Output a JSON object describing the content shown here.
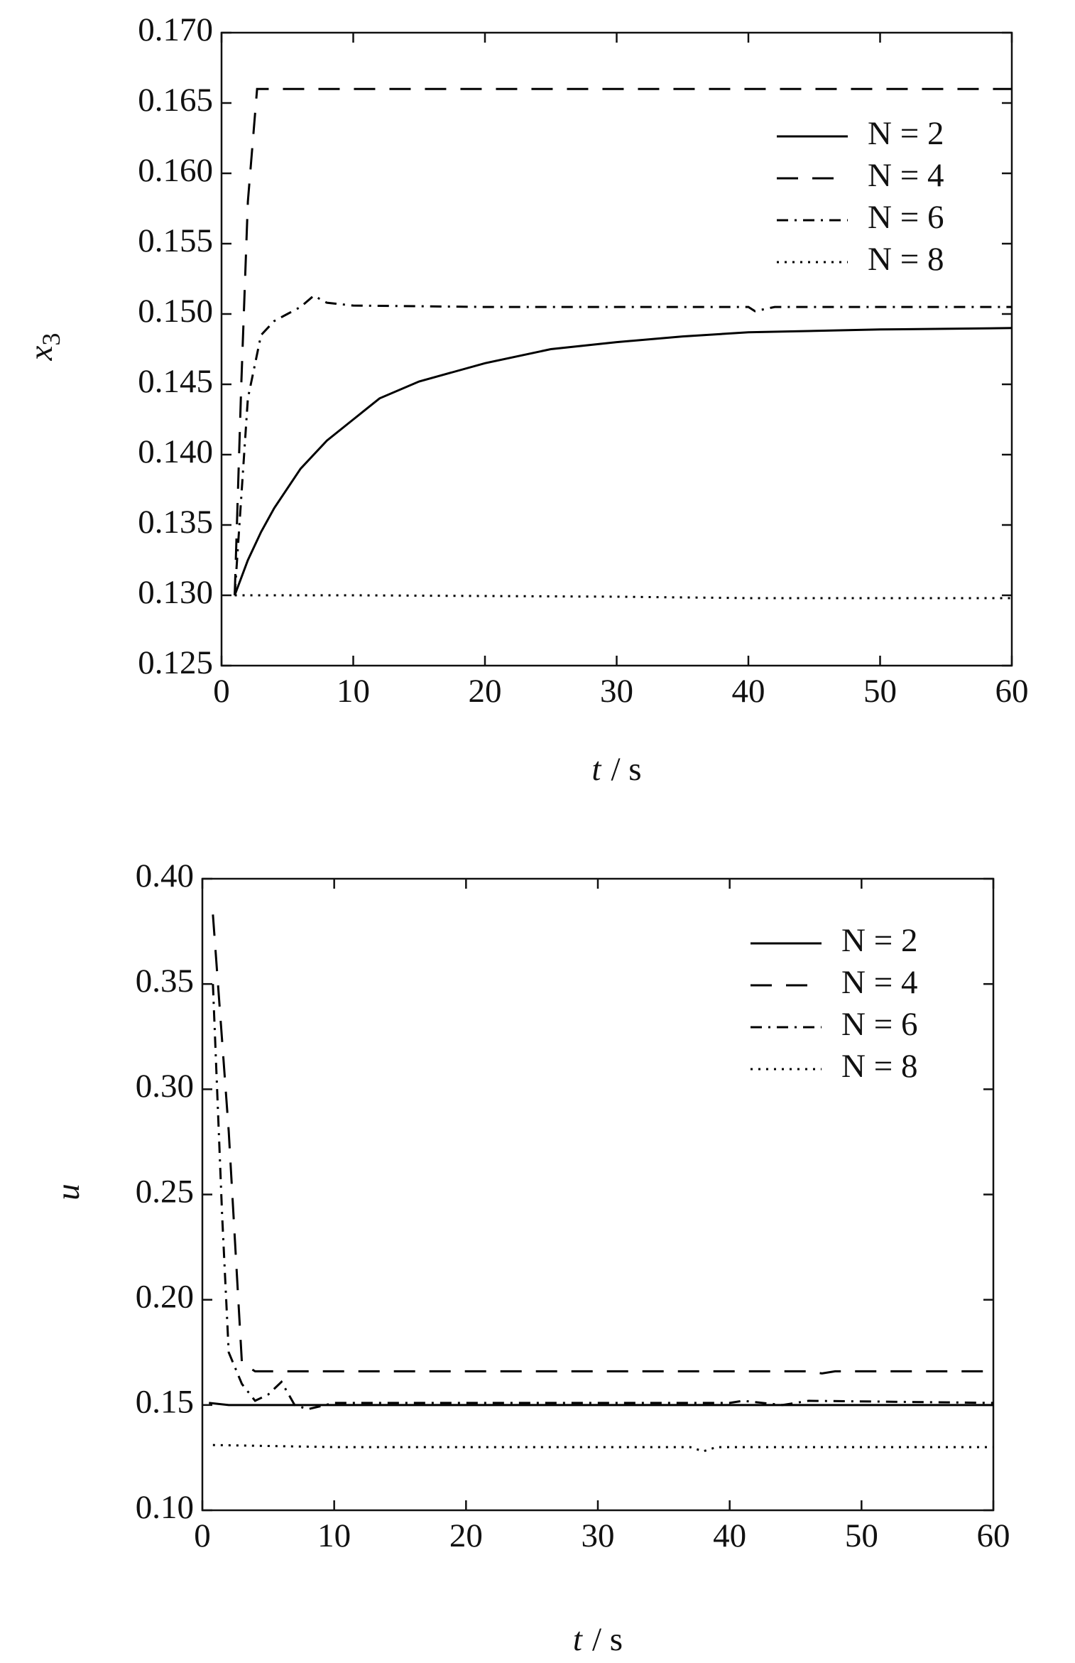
{
  "chart_data": [
    {
      "type": "line",
      "ylabel": {
        "text": "x",
        "subscript": "3"
      },
      "xlabel": {
        "var": "t",
        "unit": "/ s"
      },
      "xlim": [
        0,
        60
      ],
      "xticks": [
        0,
        10,
        20,
        30,
        40,
        50,
        60
      ],
      "ylim": [
        0.125,
        0.17
      ],
      "yticks": [
        0.125,
        {
          "value": 0.13,
          "label": "0.130"
        },
        0.135,
        {
          "value": 0.14,
          "label": "0.140"
        },
        0.145,
        {
          "value": 0.15,
          "label": "0.150"
        },
        0.155,
        {
          "value": 0.16,
          "label": "0.160"
        },
        0.165,
        {
          "value": 0.17,
          "label": "0.170"
        }
      ],
      "legend": "upper right",
      "series": [
        {
          "name": "N = 2",
          "color": "#000000",
          "linestyle": "solid",
          "x": [
            1,
            2,
            3,
            4,
            6,
            8,
            10,
            12,
            15,
            20,
            25,
            30,
            35,
            40,
            50,
            60
          ],
          "values": [
            0.13,
            0.1325,
            0.1345,
            0.1362,
            0.139,
            0.141,
            0.1425,
            0.144,
            0.1452,
            0.1465,
            0.1475,
            0.148,
            0.1484,
            0.1487,
            0.1489,
            0.149
          ]
        },
        {
          "name": "N = 4",
          "color": "#000000",
          "linestyle": "dashed",
          "x": [
            1,
            1.5,
            2,
            2.7,
            10,
            60
          ],
          "values": [
            0.13,
            0.145,
            0.158,
            0.166,
            0.166,
            0.166
          ]
        },
        {
          "name": "N = 6",
          "color": "#000000",
          "linestyle": "dashdot",
          "x": [
            1,
            2,
            3,
            4,
            5,
            6,
            7,
            8,
            10,
            20,
            40,
            40.5,
            42,
            60
          ],
          "values": [
            0.13,
            0.144,
            0.1485,
            0.1495,
            0.15,
            0.1505,
            0.1513,
            0.1508,
            0.1506,
            0.1505,
            0.1505,
            0.1502,
            0.1505,
            0.1505
          ]
        },
        {
          "name": "N = 8",
          "color": "#000000",
          "linestyle": "dotted",
          "x": [
            1,
            10,
            30,
            40,
            60
          ],
          "values": [
            0.13,
            0.13,
            0.1299,
            0.1298,
            0.1298
          ]
        }
      ]
    },
    {
      "type": "line",
      "ylabel": {
        "text": "u"
      },
      "xlabel": {
        "var": "t",
        "unit": "/ s"
      },
      "xlim": [
        0,
        60
      ],
      "xticks": [
        0,
        10,
        20,
        30,
        40,
        50,
        60
      ],
      "ylim": [
        0.1,
        0.4
      ],
      "yticks": [
        {
          "value": 0.1,
          "label": "0.10"
        },
        0.15,
        {
          "value": 0.2,
          "label": "0.20"
        },
        0.25,
        {
          "value": 0.3,
          "label": "0.30"
        },
        0.35,
        {
          "value": 0.4,
          "label": "0.40"
        }
      ],
      "legend": "upper right",
      "series": [
        {
          "name": "N = 2",
          "color": "#000000",
          "linestyle": "solid",
          "x": [
            0.5,
            2,
            60
          ],
          "values": [
            0.151,
            0.15,
            0.15
          ]
        },
        {
          "name": "N = 4",
          "color": "#000000",
          "linestyle": "dashed",
          "x": [
            0.8,
            2,
            3,
            4,
            46,
            47,
            48,
            60
          ],
          "values": [
            0.383,
            0.28,
            0.17,
            0.166,
            0.166,
            0.165,
            0.166,
            0.166
          ]
        },
        {
          "name": "N = 6",
          "color": "#000000",
          "linestyle": "dashdot",
          "x": [
            0.8,
            1.5,
            2,
            3,
            4,
            5,
            6,
            7,
            8,
            10,
            40,
            41,
            44,
            46,
            60
          ],
          "values": [
            0.35,
            0.24,
            0.175,
            0.16,
            0.152,
            0.155,
            0.161,
            0.15,
            0.148,
            0.151,
            0.151,
            0.152,
            0.15,
            0.152,
            0.151
          ]
        },
        {
          "name": "N = 8",
          "color": "#000000",
          "linestyle": "dotted",
          "x": [
            0.8,
            10,
            37,
            38,
            39,
            60
          ],
          "values": [
            0.131,
            0.13,
            0.13,
            0.128,
            0.13,
            0.13
          ]
        }
      ]
    }
  ]
}
